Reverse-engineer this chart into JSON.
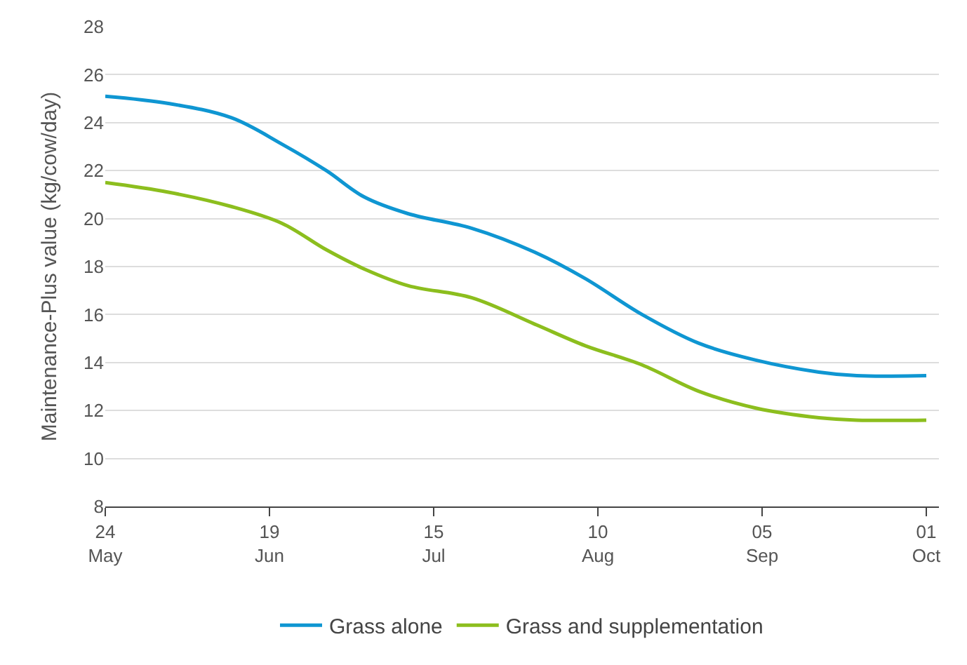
{
  "chart_data": {
    "type": "line",
    "ylabel": "Maintenance-Plus value (kg/cow/day)",
    "x": [
      "--05-24",
      "--06-03",
      "--06-13",
      "--06-21",
      "--06-28",
      "--07-04",
      "--07-11",
      "--07-21",
      "--07-31",
      "--08-08",
      "--08-17",
      "--08-26",
      "--09-04",
      "--09-14",
      "--09-20",
      "--10-01"
    ],
    "series": [
      {
        "name": "Grass alone",
        "color": "#0f96d2",
        "values": [
          25.1,
          24.8,
          24.2,
          23.1,
          22.0,
          20.9,
          20.2,
          19.6,
          18.6,
          17.5,
          16.0,
          14.8,
          14.1,
          13.6,
          13.45,
          13.45
        ]
      },
      {
        "name": "Grass and supplementation",
        "color": "#8cbe1e",
        "values": [
          21.5,
          21.1,
          20.5,
          19.8,
          18.7,
          17.9,
          17.2,
          16.7,
          15.6,
          14.7,
          13.9,
          12.8,
          12.1,
          11.7,
          11.6,
          11.6
        ]
      }
    ],
    "xlim": [
      "--05-24",
      "--10-03"
    ],
    "xticks": [
      {
        "value": "--05-24",
        "label": "24\nMay"
      },
      {
        "value": "--06-19",
        "label": "19\nJun"
      },
      {
        "value": "--07-15",
        "label": "15\nJul"
      },
      {
        "value": "--08-10",
        "label": "10\nAug"
      },
      {
        "value": "--09-05",
        "label": "05\nSep"
      },
      {
        "value": "--10-01",
        "label": "01\nOct"
      }
    ],
    "ylim": [
      8,
      28
    ],
    "yticks": [
      8,
      10,
      12,
      14,
      16,
      18,
      20,
      22,
      24,
      26,
      28
    ],
    "grid": "y",
    "legend": "bottom",
    "marker": "none",
    "line_style": "solid"
  }
}
